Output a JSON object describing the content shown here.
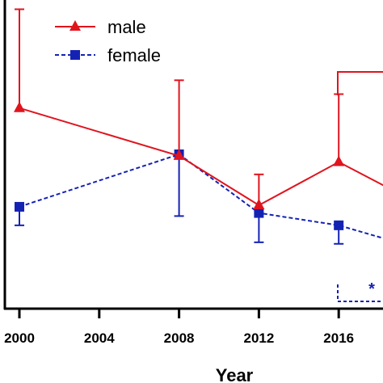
{
  "chart_data": {
    "type": "line",
    "xlabel": "Year",
    "ylabel": "",
    "x_ticks": [
      "2000",
      "2004",
      "2008",
      "2012",
      "2016"
    ],
    "x": [
      2000,
      2008,
      2012,
      2016,
      2020
    ],
    "xlim": [
      2000,
      2020
    ],
    "ylim": [
      0,
      100
    ],
    "grid": false,
    "legend": "top-left",
    "series": [
      {
        "name": "male",
        "color": "#e0141e",
        "marker": "triangle",
        "linestyle": "solid",
        "values": [
          65.0,
          49.5,
          33.5,
          47.5,
          34.0
        ],
        "err_upper": [
          97.0,
          74.0,
          43.5,
          69.5,
          null
        ],
        "err_lower": [
          null,
          null,
          null,
          null,
          null
        ]
      },
      {
        "name": "female",
        "color": "#1422b4",
        "marker": "square",
        "linestyle": "dashed",
        "values": [
          33.0,
          50.0,
          31.0,
          27.0,
          19.5
        ],
        "err_upper": [
          null,
          null,
          null,
          null,
          null
        ],
        "err_lower": [
          27.0,
          30.0,
          21.5,
          21.0,
          null
        ]
      }
    ],
    "annotations": [
      {
        "text": "*",
        "color": "#1422b4"
      }
    ]
  }
}
